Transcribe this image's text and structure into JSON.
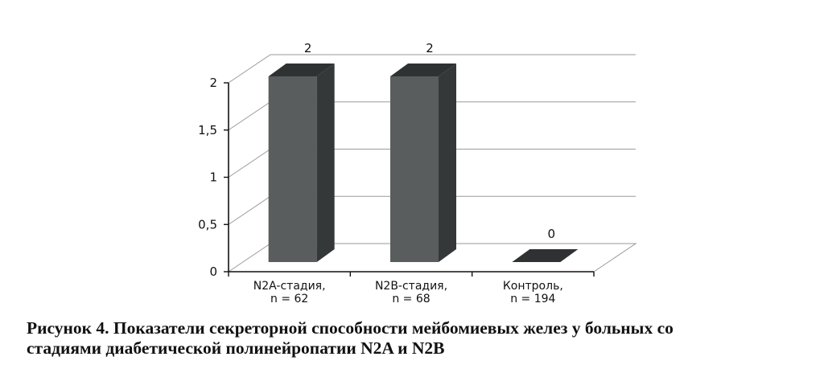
{
  "chart_data": {
    "type": "bar",
    "categories": [
      [
        "N2A-стадия,",
        "n = 62"
      ],
      [
        "N2B-стадия,",
        "n = 68"
      ],
      [
        "Контроль,",
        "n = 194"
      ]
    ],
    "values": [
      2,
      2,
      0
    ],
    "data_labels": [
      "2",
      "2",
      "0"
    ],
    "ylim": [
      0,
      2
    ],
    "yticks": [
      {
        "value": 0,
        "label": "0"
      },
      {
        "value": 0.5,
        "label": "0,5"
      },
      {
        "value": 1,
        "label": "1"
      },
      {
        "value": 1.5,
        "label": "1,5"
      },
      {
        "value": 2,
        "label": "2"
      }
    ],
    "style": "3d-column",
    "grid": true,
    "bar_color": "#5a5d5d",
    "bar_side_color": "#353838",
    "bar_top_color": "#2f3232"
  },
  "caption": {
    "line1": "Рисунок 4. Показатели секреторной способности мейбомиевых желез у больных со",
    "line2": "стадиями диабетической полинейропатии N2A и N2B"
  }
}
